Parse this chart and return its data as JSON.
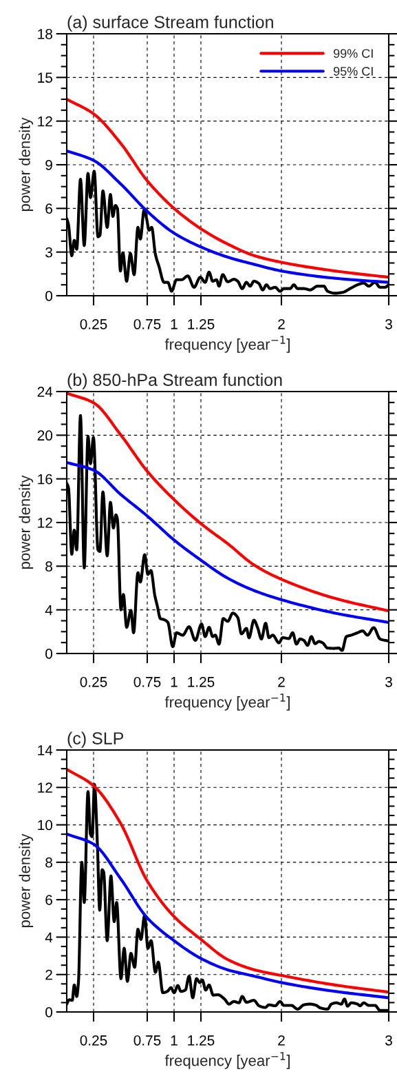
{
  "chart_data": [
    {
      "type": "line",
      "title": "(a) surface Stream function",
      "xlabel": "frequency [year$^{−1}$]",
      "ylabel": "power density",
      "xlim": [
        0,
        3
      ],
      "xticks": [
        0.25,
        0.75,
        1,
        1.25,
        2,
        3
      ],
      "ylim": [
        0,
        18
      ],
      "yticks": [
        0,
        3,
        6,
        9,
        12,
        15,
        18
      ],
      "grid": true,
      "legend": "top right",
      "series": [
        {
          "color": "#000000",
          "x": [
            0,
            0.016,
            0.047,
            0.07,
            0.093,
            0.128,
            0.163,
            0.198,
            0.221,
            0.256,
            0.291,
            0.309,
            0.337,
            0.377,
            0.407,
            0.43,
            0.453,
            0.472,
            0.5,
            0.523,
            0.558,
            0.593,
            0.628,
            0.663,
            0.686,
            0.721,
            0.744,
            0.767,
            0.791,
            0.826,
            0.86,
            0.907,
            0.942,
            0.977,
            1.023,
            1.07,
            1.128,
            1.186,
            1.244,
            1.29,
            1.326,
            1.36,
            1.395,
            1.419,
            1.453,
            1.5,
            1.558,
            1.593,
            1.635,
            1.674,
            1.709,
            1.744,
            1.79,
            1.826,
            1.86,
            1.895,
            1.942,
            1.988,
            2.023,
            2.081,
            2.116,
            2.151,
            2.209,
            2.267,
            2.337,
            2.395,
            2.43,
            2.5,
            2.57,
            2.64,
            2.709,
            2.767,
            2.814,
            2.872,
            2.919,
            2.965,
            3.0
          ],
          "values": [
            5.3,
            4.9,
            2.75,
            3.8,
            3.2,
            8.0,
            3.45,
            8.4,
            6.75,
            8.55,
            4.05,
            4.15,
            7.2,
            4.7,
            6.95,
            5.45,
            6.2,
            6.0,
            1.7,
            2.95,
            1.0,
            2.9,
            1.45,
            4.7,
            3.9,
            5.9,
            5.3,
            4.5,
            4.7,
            2.85,
            2.0,
            0.92,
            0.92,
            0.31,
            1.1,
            1.1,
            1.36,
            0.58,
            1.27,
            0.92,
            1.62,
            1.0,
            1.1,
            0.66,
            1.45,
            0.96,
            1.13,
            1.0,
            0.49,
            0.92,
            0.66,
            1.0,
            0.84,
            0.4,
            0.75,
            0.49,
            0.58,
            0.31,
            0.49,
            0.49,
            0.75,
            0.49,
            0.49,
            0.4,
            0.66,
            0.66,
            0.31,
            0.17,
            0.23,
            0.49,
            0.75,
            0.87,
            0.66,
            0.92,
            0.58,
            0.58,
            0.75
          ]
        },
        {
          "name": "99% CI",
          "color": "#ff0000",
          "x": [
            0,
            0.25,
            0.5,
            0.75,
            1,
            1.25,
            1.5,
            1.75,
            2,
            2.5,
            3
          ],
          "values": [
            13.5,
            12.5,
            10.5,
            7.9,
            6.0,
            4.6,
            3.55,
            2.75,
            2.3,
            1.7,
            1.27
          ]
        },
        {
          "name": "95% CI",
          "color": "#0000ff",
          "x": [
            0,
            0.25,
            0.5,
            0.75,
            1,
            1.25,
            1.5,
            1.75,
            2,
            2.5,
            3
          ],
          "values": [
            9.95,
            9.3,
            7.7,
            5.8,
            4.3,
            3.35,
            2.65,
            2.15,
            1.7,
            1.2,
            0.92
          ]
        }
      ]
    },
    {
      "type": "line",
      "title": "(b) 850-hPa Stream function",
      "xlabel": "frequency [year$^{−1}$]",
      "ylabel": "power density",
      "xlim": [
        0,
        3
      ],
      "xticks": [
        0.25,
        0.75,
        1,
        1.25,
        2,
        3
      ],
      "ylim": [
        0,
        24
      ],
      "yticks": [
        0,
        4,
        8,
        12,
        16,
        20,
        24
      ],
      "grid": true,
      "series": [
        {
          "color": "#000000",
          "x": [
            0,
            0.016,
            0.047,
            0.07,
            0.093,
            0.128,
            0.163,
            0.198,
            0.221,
            0.249,
            0.291,
            0.309,
            0.337,
            0.377,
            0.407,
            0.435,
            0.458,
            0.472,
            0.505,
            0.528,
            0.558,
            0.598,
            0.623,
            0.663,
            0.686,
            0.726,
            0.756,
            0.784,
            0.821,
            0.844,
            0.872,
            0.907,
            0.942,
            0.988,
            1.023,
            1.081,
            1.14,
            1.198,
            1.256,
            1.29,
            1.326,
            1.36,
            1.384,
            1.419,
            1.458,
            1.5,
            1.547,
            1.593,
            1.628,
            1.674,
            1.698,
            1.744,
            1.779,
            1.814,
            1.853,
            1.884,
            1.919,
            1.977,
            2.012,
            2.07,
            2.105,
            2.14,
            2.174,
            2.209,
            2.244,
            2.279,
            2.314,
            2.349,
            2.384,
            2.43,
            2.488,
            2.535,
            2.565,
            2.605,
            2.651,
            2.709,
            2.756,
            2.802,
            2.86,
            2.919,
            3.0
          ],
          "values": [
            15.6,
            15.2,
            9.1,
            11.3,
            9.5,
            21.8,
            7.85,
            19.9,
            17.4,
            19.8,
            9.5,
            9.35,
            14.8,
            8.95,
            13.85,
            11.5,
            12.7,
            12.3,
            4.0,
            5.4,
            2.4,
            3.95,
            1.9,
            7.4,
            6.55,
            9.05,
            7.25,
            7.6,
            5.3,
            4.35,
            3.2,
            3.1,
            2.85,
            0.63,
            1.9,
            1.68,
            2.45,
            1.2,
            2.7,
            1.55,
            2.4,
            1.55,
            1.68,
            0.86,
            3.2,
            2.95,
            3.7,
            3.3,
            1.8,
            2.3,
            1.45,
            3.05,
            2.35,
            1.33,
            2.77,
            1.45,
            1.68,
            0.98,
            1.45,
            1.37,
            1.9,
            0.86,
            1.33,
            1.2,
            0.75,
            1.55,
            0.9,
            1.1,
            0.98,
            0.5,
            0.47,
            0.5,
            0.28,
            1.55,
            1.68,
            1.9,
            2.07,
            1.68,
            2.37,
            1.33,
            1.14
          ]
        },
        {
          "color": "#ff0000",
          "x": [
            0,
            0.25,
            0.5,
            0.75,
            1,
            1.25,
            1.5,
            1.75,
            2,
            2.5,
            3
          ],
          "values": [
            23.85,
            22.97,
            20.07,
            16.7,
            14.1,
            11.9,
            10.06,
            8.08,
            6.8,
            5.05,
            3.9
          ]
        },
        {
          "color": "#0000ff",
          "x": [
            0,
            0.25,
            0.5,
            0.75,
            1,
            1.25,
            1.5,
            1.75,
            2,
            2.5,
            3
          ],
          "values": [
            17.5,
            16.8,
            14.6,
            12.6,
            10.4,
            8.55,
            6.9,
            5.75,
            4.93,
            3.7,
            2.84
          ]
        }
      ]
    },
    {
      "type": "line",
      "title": "(c) SLP",
      "xlabel": "frequency [year$^{−1}$]",
      "ylabel": "power density",
      "xlim": [
        0,
        3
      ],
      "xticks": [
        0.25,
        0.75,
        1,
        1.25,
        2,
        3
      ],
      "ylim": [
        0,
        14
      ],
      "yticks": [
        0,
        2,
        4,
        6,
        8,
        10,
        12,
        14
      ],
      "grid": true,
      "series": [
        {
          "color": "#000000",
          "x": [
            0,
            0.023,
            0.051,
            0.07,
            0.093,
            0.109,
            0.14,
            0.163,
            0.198,
            0.221,
            0.237,
            0.258,
            0.286,
            0.307,
            0.33,
            0.344,
            0.377,
            0.412,
            0.442,
            0.465,
            0.505,
            0.535,
            0.565,
            0.598,
            0.633,
            0.663,
            0.691,
            0.726,
            0.756,
            0.786,
            0.826,
            0.853,
            0.895,
            0.937,
            0.972,
            1.0,
            1.035,
            1.063,
            1.105,
            1.14,
            1.174,
            1.209,
            1.24,
            1.263,
            1.295,
            1.326,
            1.365,
            1.407,
            1.47,
            1.512,
            1.558,
            1.605,
            1.635,
            1.674,
            1.744,
            1.791,
            1.849,
            1.884,
            1.942,
            1.988,
            2.023,
            2.093,
            2.151,
            2.209,
            2.267,
            2.326,
            2.36,
            2.43,
            2.465,
            2.512,
            2.558,
            2.588,
            2.616,
            2.651,
            2.709,
            2.733,
            2.767,
            2.814,
            2.872,
            2.919,
            3.0
          ],
          "values": [
            0.42,
            0.65,
            0.62,
            1.44,
            0.83,
            1.57,
            8.0,
            5.85,
            11.78,
            9.5,
            9.37,
            12.16,
            8.9,
            5.44,
            7.6,
            7.48,
            3.81,
            7.27,
            4.83,
            5.85,
            1.78,
            3.4,
            1.64,
            3.13,
            2.39,
            4.42,
            3.88,
            5.17,
            3.4,
            3.81,
            2.12,
            2.66,
            1.03,
            1.1,
            1.3,
            1.03,
            1.41,
            1.1,
            1.17,
            1.91,
            0.76,
            1.78,
            1.57,
            1.71,
            1.17,
            1.44,
            0.9,
            0.92,
            0.69,
            0.42,
            0.56,
            0.49,
            0.83,
            0.52,
            0.62,
            0.33,
            0.24,
            0.38,
            0.33,
            0.56,
            0.35,
            0.35,
            0.15,
            0.38,
            0.42,
            0.35,
            0.22,
            0.15,
            0.42,
            0.49,
            0.42,
            0.69,
            0.31,
            0.49,
            0.42,
            0.33,
            0.49,
            0.35,
            0.35,
            0.08,
            0.08
          ]
        },
        {
          "color": "#ff0000",
          "x": [
            0,
            0.25,
            0.5,
            0.75,
            1,
            1.25,
            1.5,
            1.75,
            2,
            2.5,
            3
          ],
          "values": [
            12.97,
            12.09,
            10.1,
            7.0,
            5.1,
            3.88,
            2.8,
            2.25,
            1.95,
            1.44,
            1.06
          ]
        },
        {
          "color": "#0000ff",
          "x": [
            0,
            0.25,
            0.5,
            0.75,
            1,
            1.25,
            1.5,
            1.75,
            2,
            2.5,
            3
          ],
          "values": [
            9.51,
            8.97,
            7.14,
            5.03,
            3.81,
            2.86,
            2.25,
            1.91,
            1.57,
            1.1,
            0.76
          ]
        }
      ]
    }
  ]
}
